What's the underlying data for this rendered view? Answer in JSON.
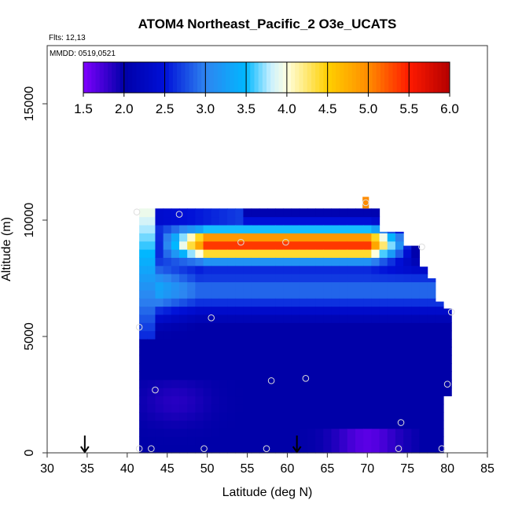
{
  "chart_data": {
    "type": "heatmap",
    "title": "ATOM4 Northeast_Pacific_2 O3e_UCATS",
    "flights_label": "Flts: 12,13",
    "mmdd_label": "MMDD: 0519,0521",
    "xlabel": "Latitude (deg N)",
    "ylabel": "Altitude (m)",
    "xlim": [
      30,
      85
    ],
    "ylim": [
      0,
      17500
    ],
    "x_ticks": [
      30,
      35,
      40,
      45,
      50,
      55,
      60,
      65,
      70,
      75,
      80,
      85
    ],
    "y_ticks": [
      0,
      5000,
      10000,
      15000
    ],
    "grid": false,
    "colorbar": {
      "range": [
        1.5,
        6.0
      ],
      "ticks": [
        "1.5",
        "2.0",
        "2.5",
        "3.0",
        "3.5",
        "4.0",
        "4.5",
        "5.0",
        "5.5",
        "6.0"
      ],
      "placement": "top"
    },
    "colors": {
      "c15": "#8000ff",
      "c20": "#0000a8",
      "c25": "#0010d8",
      "c30": "#2e84f0",
      "c35": "#00b8ff",
      "c38": "#c8f0ff",
      "c40": "#ffffe0",
      "c45": "#ffd000",
      "c50": "#ff8c00",
      "c55": "#ff1a00",
      "c60": "#b40000"
    },
    "field": {
      "lat_range": [
        41.5,
        80.5
      ],
      "alt_range": [
        0,
        10500
      ],
      "upper_ridge_peak": {
        "lat": 62,
        "alt": 9000,
        "value": 5.8
      },
      "background_value": 2.0
    },
    "sample_points": [
      {
        "lat": 41.2,
        "alt": 10350
      },
      {
        "lat": 46.5,
        "alt": 10250
      },
      {
        "lat": 54.2,
        "alt": 9050
      },
      {
        "lat": 59.8,
        "alt": 9050
      },
      {
        "lat": 69.8,
        "alt": 10750
      },
      {
        "lat": 76.8,
        "alt": 8850
      },
      {
        "lat": 80.5,
        "alt": 6050
      },
      {
        "lat": 41.5,
        "alt": 5400
      },
      {
        "lat": 50.5,
        "alt": 5800
      },
      {
        "lat": 43.5,
        "alt": 2700
      },
      {
        "lat": 58.0,
        "alt": 3100
      },
      {
        "lat": 62.3,
        "alt": 3200
      },
      {
        "lat": 80.0,
        "alt": 2950
      },
      {
        "lat": 74.2,
        "alt": 1300
      },
      {
        "lat": 41.5,
        "alt": 180
      },
      {
        "lat": 43.0,
        "alt": 180
      },
      {
        "lat": 49.6,
        "alt": 180
      },
      {
        "lat": 57.4,
        "alt": 180
      },
      {
        "lat": 73.9,
        "alt": 180
      },
      {
        "lat": 79.3,
        "alt": 180
      }
    ],
    "arrows": [
      {
        "lat": 34.7,
        "alt": 0
      },
      {
        "lat": 61.2,
        "alt": 0
      }
    ]
  }
}
